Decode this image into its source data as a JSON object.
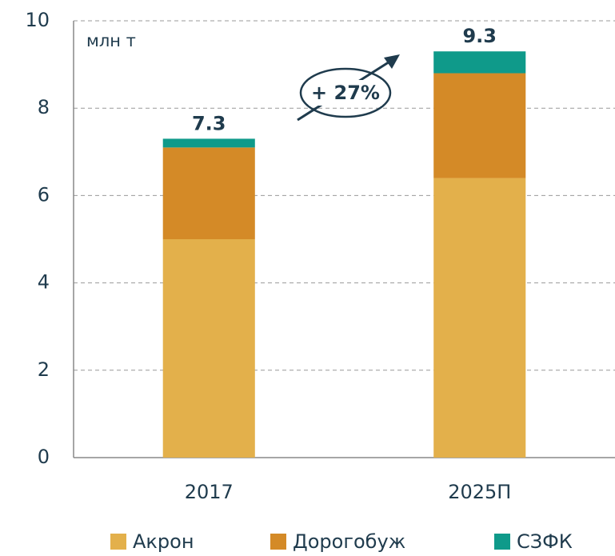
{
  "chart_data": {
    "type": "stacked_bar",
    "unit_label": "млн т",
    "annotation": "+ 27%",
    "categories": [
      "2017",
      "2025П"
    ],
    "series": [
      {
        "name": "Акрон",
        "color": "#e3b04b",
        "values": [
          5.0,
          6.4
        ]
      },
      {
        "name": "Дорогобуж",
        "color": "#d48a27",
        "values": [
          2.1,
          2.4
        ]
      },
      {
        "name": "СЗФК",
        "color": "#0f9a8a",
        "values": [
          0.2,
          0.5
        ]
      }
    ],
    "total_labels": [
      "7.3",
      "9.3"
    ],
    "ylim": [
      0,
      10
    ],
    "yticks": [
      0,
      2,
      4,
      6,
      8,
      10
    ],
    "grid": true
  }
}
